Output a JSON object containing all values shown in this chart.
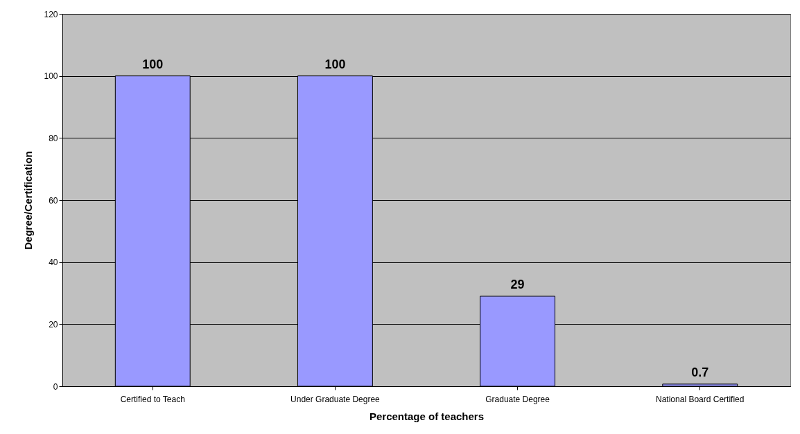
{
  "chart_data": {
    "type": "bar",
    "xlabel": "Percentage of teachers",
    "ylabel": "Degree/Certification",
    "categories": [
      "Certified to Teach",
      "Under Graduate Degree",
      "Graduate Degree",
      "National Board Certified"
    ],
    "values": [
      100,
      100,
      29,
      0.7
    ],
    "color": "#9999ff",
    "ylim": [
      0,
      120
    ],
    "yticks": [
      0,
      20,
      40,
      60,
      80,
      100,
      120
    ],
    "grid": "y",
    "data_labels": true
  }
}
